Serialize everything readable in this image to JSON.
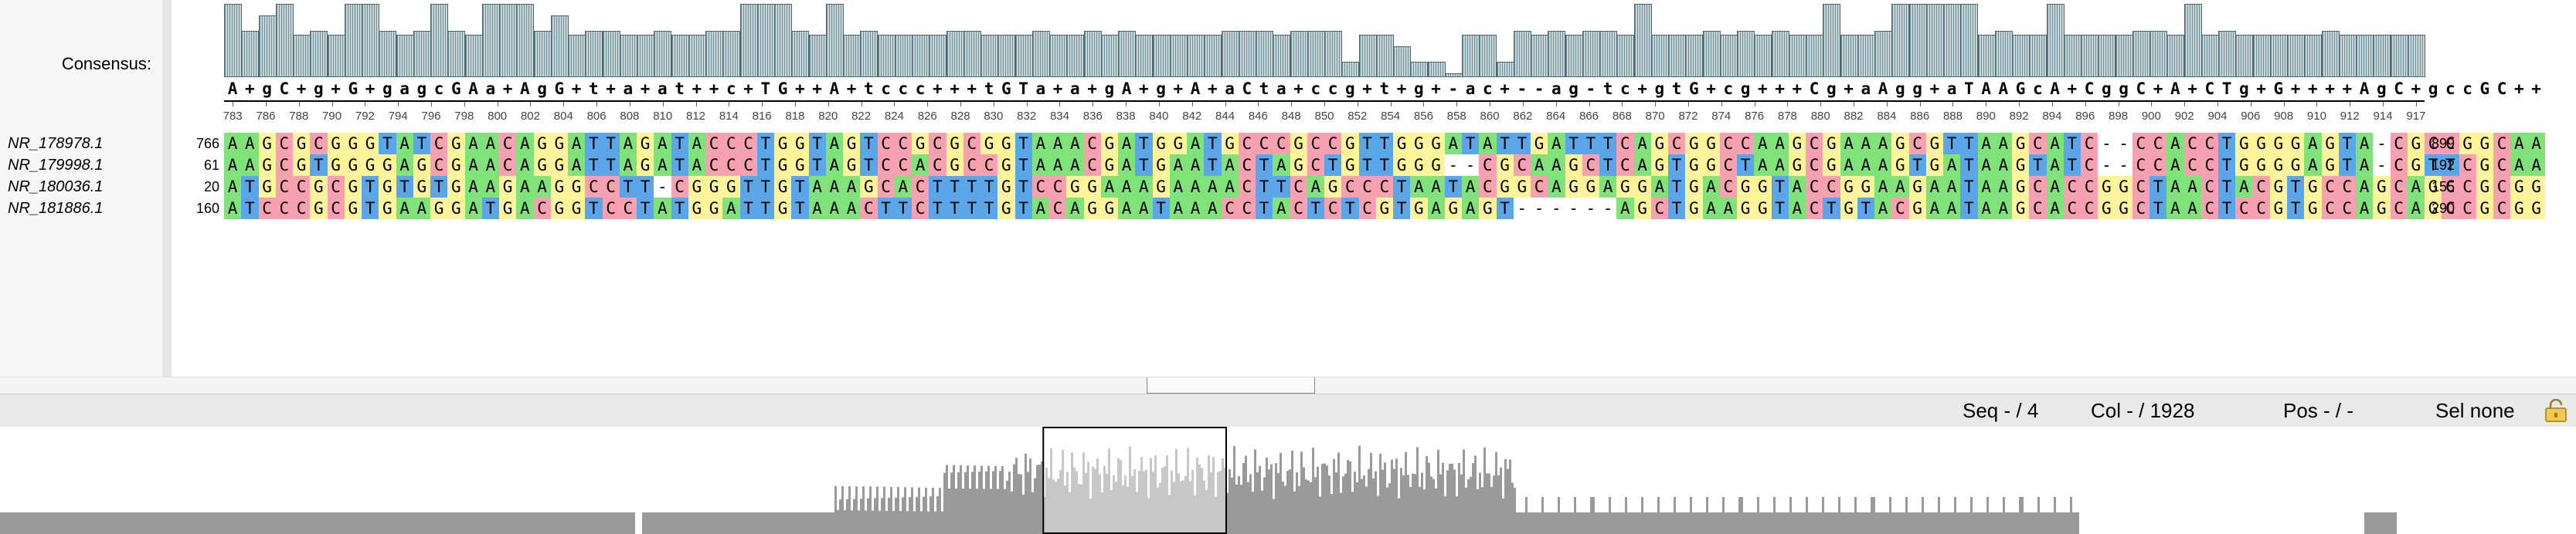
{
  "sidebar": {
    "consensus_label": "Consensus:",
    "sequences": [
      "NR_178978.1",
      "NR_179998.1",
      "NR_180036.1",
      "NR_181886.1"
    ]
  },
  "alignment": {
    "consensus": "A+gC+g+G+gagcGAa+AgG+t+a+at++c+TG++A+tccc+++tGTa+a+gA+g+A+aCta+ccg+t+g+-ac+--ag-tc+gtG+cg+++Cg+aAgg+aTAAGcA+CggC+A+CTg+G++++AgC+gccGC++",
    "ruler_labels": [
      "783",
      "786",
      "788",
      "790",
      "792",
      "794",
      "796",
      "798",
      "800",
      "802",
      "804",
      "806",
      "808",
      "810",
      "812",
      "814",
      "816",
      "818",
      "820",
      "822",
      "824",
      "826",
      "828",
      "830",
      "832",
      "834",
      "836",
      "838",
      "840",
      "842",
      "844",
      "846",
      "848",
      "850",
      "852",
      "854",
      "856",
      "858",
      "860",
      "862",
      "864",
      "866",
      "868",
      "870",
      "872",
      "874",
      "876",
      "878",
      "880",
      "882",
      "884",
      "886",
      "888",
      "890",
      "892",
      "894",
      "896",
      "898",
      "900",
      "902",
      "904",
      "906",
      "908",
      "910",
      "912",
      "914",
      "917"
    ],
    "rows": [
      {
        "start": "766",
        "end": "899",
        "seq": "AAGCGCGGGTATCGAACAGGATTAGATACCCTGGTAGTCCGCGCGGTAAACGATGGATGCCCGCCGTTGGGATATTGATTTCAGCGGCCAAGCGAAAGCGTTAAGCATC--CCACCTGGGGAGTA-CGCCGGCAA"
      },
      {
        "start": "61",
        "end": "192",
        "seq": "AAGCGTGGGGAGCGAACAGGATTAGATACCCTGGTAGTCCACGCCGTAAACGATGAATACTAGCTGTTGGG--CGCAAGCTCAGTGGCTAAGCGAAAGTGATAAGTATC--CCACCTGGGGAGTA-CGTTCGCAA"
      },
      {
        "start": "20",
        "end": "155",
        "seq": "ATGCCGCGTGTGTGAAGAAGGCCTT-CGGGTTGTAAAGCACTTTTGTCCGGAAAGAAAACTTCAGCCCTAATACGGCAGGAGGATGACGGTACCGGAAGAATAAGCACCGGCTAACTACGTGCCAGCAGCCGCGG"
      },
      {
        "start": "160",
        "end": "290",
        "seq": "ATCCCGCGTGAAGGATGACGGTCCTATGGATTGTAAACTTCTTTTGTACAGGAATAAACCTACTCTCGTGAGAGT------AGCTGAAGGTACTGTACGAATAAGCACCGGCTAACTCCGTGCCAGCAGCCGCGG"
      }
    ]
  },
  "histogram_levels": [
    0.95,
    0.6,
    0.8,
    0.95,
    0.55,
    0.6,
    0.55,
    0.95,
    0.95,
    0.6,
    0.55,
    0.6,
    0.95,
    0.6,
    0.55,
    0.95,
    0.95,
    0.95,
    0.6,
    0.8,
    0.55,
    0.6,
    0.6,
    0.55,
    0.55,
    0.6,
    0.55,
    0.55,
    0.6,
    0.6,
    0.95,
    0.95,
    0.95,
    0.6,
    0.55,
    0.95,
    0.55,
    0.6,
    0.55,
    0.55,
    0.55,
    0.55,
    0.6,
    0.6,
    0.55,
    0.55,
    0.55,
    0.6,
    0.55,
    0.55,
    0.6,
    0.55,
    0.6,
    0.55,
    0.55,
    0.55,
    0.55,
    0.55,
    0.6,
    0.6,
    0.6,
    0.55,
    0.6,
    0.6,
    0.6,
    0.2,
    0.55,
    0.55,
    0.4,
    0.2,
    0.2,
    0.05,
    0.55,
    0.55,
    0.2,
    0.6,
    0.55,
    0.6,
    0.55,
    0.6,
    0.6,
    0.55,
    0.95,
    0.55,
    0.55,
    0.55,
    0.6,
    0.55,
    0.6,
    0.55,
    0.6,
    0.55,
    0.55,
    0.95,
    0.55,
    0.55,
    0.6,
    0.95,
    0.95,
    0.95,
    0.95,
    0.95,
    0.55,
    0.6,
    0.55,
    0.55,
    0.95,
    0.55,
    0.55,
    0.55,
    0.55,
    0.6,
    0.6,
    0.55,
    0.95,
    0.55,
    0.6,
    0.55,
    0.55,
    0.55,
    0.55,
    0.55,
    0.6,
    0.55,
    0.55,
    0.55,
    0.55,
    0.55
  ],
  "status": {
    "seq": "Seq - / 4",
    "col": "Col - / 1928",
    "pos": "Pos - / -",
    "sel": "Sel none"
  },
  "overview": {
    "viewport_start_fraction": 0.405,
    "viewport_width_fraction": 0.071
  },
  "colors": {
    "A": "#7fe37a",
    "C": "#f7a0b2",
    "G": "#fff49a",
    "T": "#5aa6e8",
    "histogram": "#6f8e98"
  }
}
